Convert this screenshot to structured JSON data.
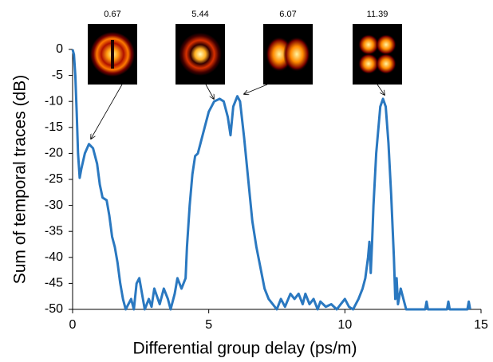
{
  "chart_data": {
    "type": "line",
    "x_label": "Differential group delay (ps/m)",
    "y_label": "Sum of temporal traces (dB)",
    "xlim": [
      0,
      15
    ],
    "xticks": [
      0,
      5,
      10,
      15
    ],
    "ylim": [
      -50,
      0
    ],
    "yticks": [
      0,
      -5,
      -10,
      -15,
      -20,
      -25,
      -30,
      -35,
      -40,
      -45,
      -50
    ],
    "annotations": [
      "0.67",
      "5.44",
      "6.07",
      "11.39"
    ],
    "series": [
      {
        "color": "#2a78c0",
        "x": [
          0,
          0.05,
          0.1,
          0.15,
          0.2,
          0.26,
          0.32,
          0.45,
          0.6,
          0.75,
          0.9,
          1.0,
          1.1,
          1.25,
          1.35,
          1.45,
          1.55,
          1.65,
          1.75,
          1.85,
          1.95,
          2.05,
          2.15,
          2.25,
          2.35,
          2.45,
          2.55,
          2.65,
          2.8,
          2.9,
          3.0,
          3.1,
          3.2,
          3.35,
          3.5,
          3.6,
          3.75,
          3.85,
          4.0,
          4.15,
          4.2,
          4.3,
          4.4,
          4.5,
          4.6,
          4.7,
          4.85,
          5.0,
          5.2,
          5.4,
          5.55,
          5.7,
          5.8,
          5.9,
          6.05,
          6.15,
          6.3,
          6.45,
          6.6,
          6.75,
          6.9,
          7.05,
          7.2,
          7.35,
          7.5,
          7.65,
          7.8,
          8.0,
          8.15,
          8.3,
          8.45,
          8.55,
          8.7,
          8.85,
          9.0,
          9.1,
          9.3,
          9.5,
          9.7,
          9.85,
          10.0,
          10.15,
          10.3,
          10.5,
          10.65,
          10.75,
          10.85,
          10.9,
          10.95,
          11.0,
          11.05,
          11.15,
          11.3,
          11.4,
          11.5,
          11.6,
          11.7,
          11.8,
          11.85,
          11.9,
          11.95,
          12.05,
          12.15,
          12.25,
          12.95,
          13.0,
          13.05,
          13.75,
          13.8,
          13.85,
          14.5,
          14.55,
          14.6
        ],
        "values": [
          0,
          -1,
          -5,
          -12,
          -20,
          -24.7,
          -23,
          -20,
          -18.2,
          -19,
          -22,
          -26,
          -28.5,
          -29,
          -32,
          -36,
          -38,
          -41,
          -45,
          -48,
          -50,
          -49,
          -48,
          -50,
          -45,
          -44,
          -47,
          -50,
          -48,
          -49.5,
          -46,
          -47.5,
          -49,
          -46,
          -48,
          -50,
          -47,
          -44,
          -46,
          -44,
          -38,
          -30,
          -24,
          -20.5,
          -20,
          -18,
          -15,
          -12,
          -10,
          -9.5,
          -10,
          -13,
          -16.5,
          -11,
          -9,
          -10,
          -17,
          -25,
          -33,
          -38,
          -42,
          -46,
          -48,
          -49,
          -50,
          -48,
          -49.5,
          -47,
          -48,
          -47,
          -49,
          -47,
          -49,
          -48,
          -50,
          -48.5,
          -49.5,
          -49,
          -50,
          -49,
          -48,
          -49.5,
          -50,
          -48,
          -46,
          -44,
          -40,
          -37,
          -43,
          -37,
          -30,
          -20,
          -11,
          -9.5,
          -11,
          -18,
          -28,
          -40,
          -48,
          -44,
          -49,
          -46,
          -48,
          -50,
          -50,
          -48.5,
          -50,
          -50,
          -48.5,
          -50,
          -50,
          -48.5,
          -50
        ]
      }
    ]
  }
}
